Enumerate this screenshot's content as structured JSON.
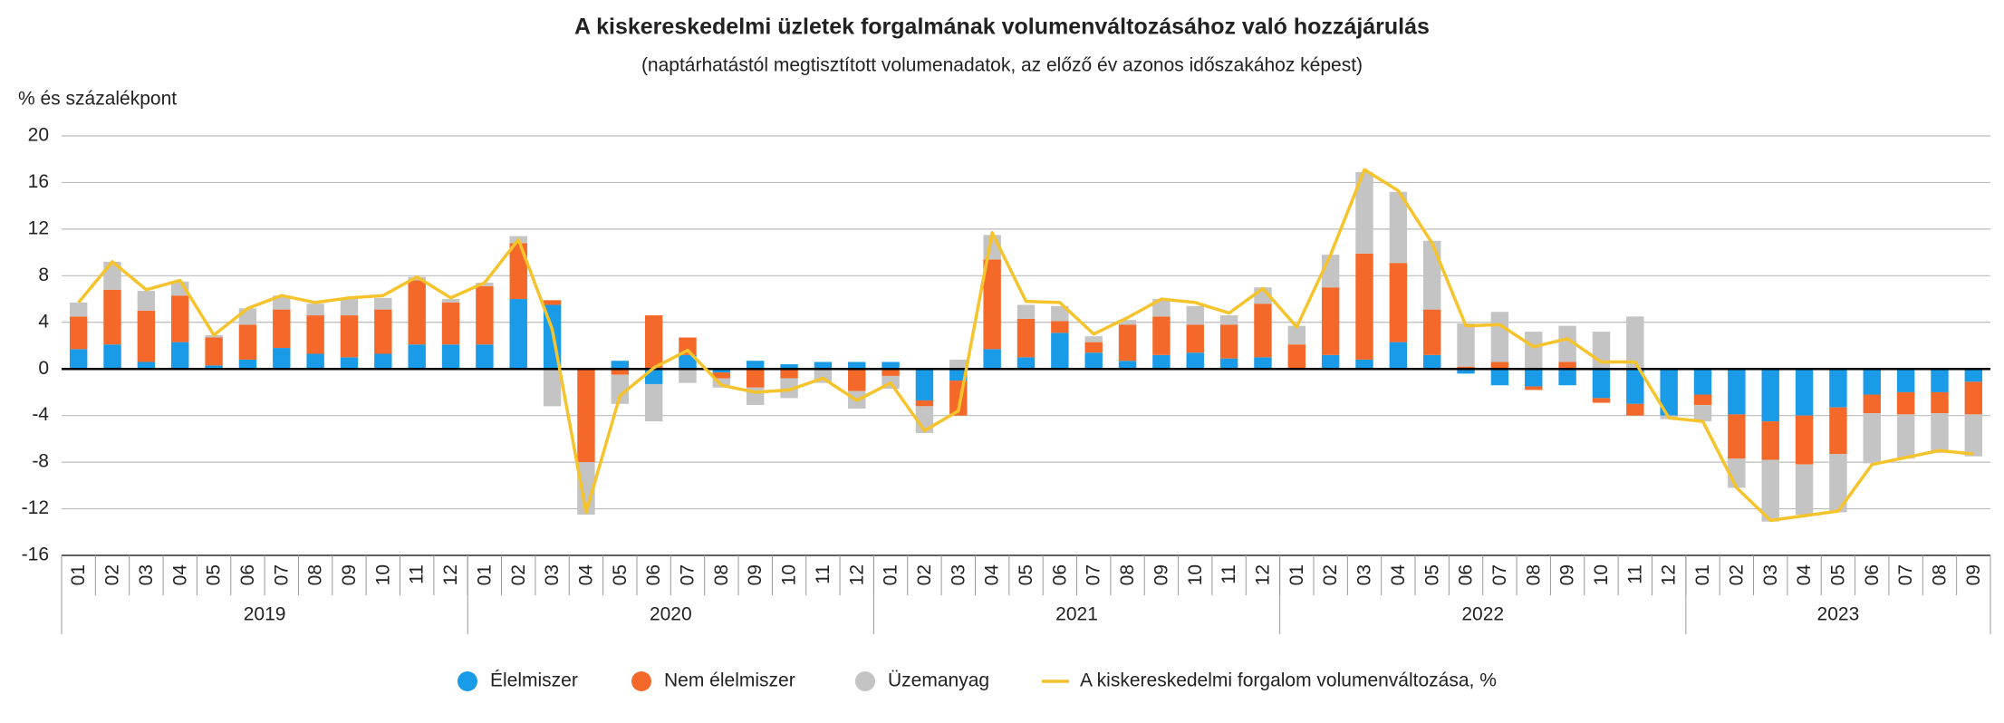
{
  "chart_data": {
    "type": "bar",
    "stacked": true,
    "title": "A kiskereskedelmi üzletek forgalmának volumenváltozásához való hozzájárulás",
    "subtitle": "(naptárhatástól megtisztított volumenadatok, az előző év azonos időszakához képest)",
    "y_label": "% és százalékpont",
    "categories": [
      "01",
      "02",
      "03",
      "04",
      "05",
      "06",
      "07",
      "08",
      "09",
      "10",
      "11",
      "12",
      "01",
      "02",
      "03",
      "04",
      "05",
      "06",
      "07",
      "08",
      "09",
      "10",
      "11",
      "12",
      "01",
      "02",
      "03",
      "04",
      "05",
      "06",
      "07",
      "08",
      "09",
      "10",
      "11",
      "12",
      "01",
      "02",
      "03",
      "04",
      "05",
      "06",
      "07",
      "08",
      "09",
      "10",
      "11",
      "12",
      "01",
      "02",
      "03",
      "04",
      "05",
      "06",
      "07",
      "08",
      "09"
    ],
    "years": [
      "2019",
      "2020",
      "2021",
      "2022",
      "2023"
    ],
    "series": [
      {
        "name": "Élelmiszer",
        "color": "#1a9be8",
        "values": [
          1.7,
          2.1,
          0.6,
          2.3,
          0.3,
          0.8,
          1.8,
          1.3,
          1.0,
          1.3,
          2.1,
          2.1,
          2.1,
          6.0,
          5.5,
          0,
          0.7,
          -1.3,
          1.2,
          -0.3,
          0.7,
          0.4,
          0.6,
          0.6,
          0.6,
          -2.7,
          -1.0,
          1.7,
          1.0,
          3.1,
          1.4,
          0.7,
          1.2,
          1.4,
          0.9,
          1.0,
          0,
          1.2,
          0.8,
          2.3,
          1.2,
          -0.4,
          -1.4,
          -1.5,
          -1.4,
          -2.5,
          -3.0,
          -4.0,
          -2.2,
          -3.9,
          -4.5,
          -4.0,
          -3.3,
          -2.2,
          -2.0,
          -2.0,
          -1.1
        ]
      },
      {
        "name": "Nem élelmiszer",
        "color": "#f4692a",
        "values": [
          2.8,
          4.7,
          4.4,
          4.0,
          2.4,
          3.0,
          3.3,
          3.3,
          3.6,
          3.8,
          5.5,
          3.6,
          5.0,
          4.8,
          0.4,
          -8.0,
          -0.5,
          4.6,
          1.5,
          -0.5,
          -1.6,
          -0.8,
          -0.1,
          -1.9,
          -0.6,
          -0.5,
          -3.0,
          7.7,
          3.3,
          1.0,
          0.9,
          3.1,
          3.3,
          2.4,
          2.9,
          4.6,
          2.1,
          5.8,
          9.1,
          6.8,
          3.9,
          0.2,
          0.6,
          -0.3,
          0.6,
          -0.4,
          -1.0,
          0,
          -0.9,
          -3.8,
          -3.3,
          -4.2,
          -4.0,
          -1.6,
          -1.9,
          -1.8,
          -2.8
        ]
      },
      {
        "name": "Üzemanyag",
        "color": "#c4c4c4",
        "values": [
          1.2,
          2.4,
          1.7,
          1.2,
          0.2,
          1.4,
          1.2,
          1.0,
          1.4,
          1.0,
          0.3,
          0.3,
          0.3,
          0.6,
          -3.2,
          -4.5,
          -2.5,
          -3.2,
          -1.2,
          -0.8,
          -1.5,
          -1.7,
          -1.1,
          -1.5,
          -1.1,
          -2.3,
          0.8,
          2.1,
          1.2,
          1.3,
          0.5,
          0.4,
          1.5,
          1.6,
          0.8,
          1.4,
          1.6,
          2.8,
          7.0,
          6.1,
          5.9,
          3.7,
          4.3,
          3.2,
          3.1,
          3.2,
          4.5,
          -0.3,
          -1.4,
          -2.5,
          -5.3,
          -4.3,
          -5.0,
          -4.3,
          -3.8,
          -3.4,
          -3.6
        ]
      }
    ],
    "line": {
      "name": "A kiskereskedelmi forgalom volumenváltozása, %",
      "color": "#f5c32c",
      "values": [
        5.7,
        9.2,
        6.8,
        7.6,
        2.9,
        5.2,
        6.3,
        5.7,
        6.1,
        6.3,
        7.9,
        6.1,
        7.4,
        11.1,
        3.4,
        -12.3,
        -2.3,
        0.1,
        1.6,
        -1.4,
        -2.0,
        -1.8,
        -0.8,
        -2.7,
        -1.2,
        -5.3,
        -3.6,
        11.7,
        5.8,
        5.7,
        3.0,
        4.4,
        6.0,
        5.7,
        4.8,
        6.9,
        3.6,
        9.8,
        17.1,
        15.3,
        10.8,
        3.7,
        3.8,
        1.9,
        2.6,
        0.6,
        0.6,
        -4.2,
        -4.5,
        -10.2,
        -13.0,
        -12.6,
        -12.2,
        -8.2,
        -7.6,
        -7.0,
        -7.3
      ]
    },
    "ylim": [
      -16,
      20
    ],
    "yticks": [
      -16,
      -12,
      -8,
      -4,
      0,
      4,
      8,
      12,
      16,
      20
    ],
    "grid": true,
    "legend": "bottom"
  }
}
